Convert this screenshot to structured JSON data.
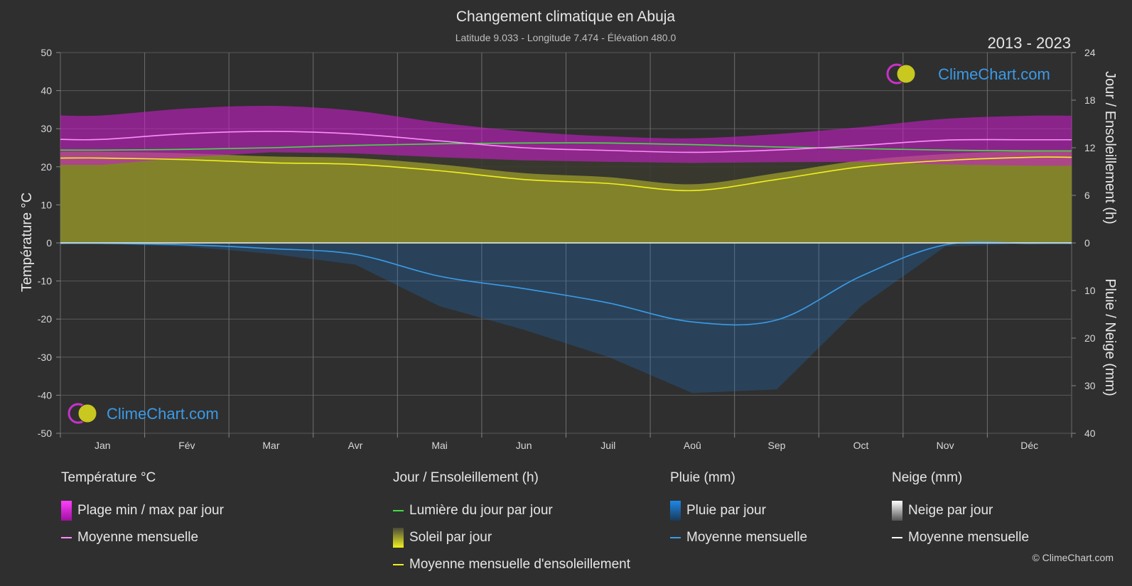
{
  "title": "Changement climatique en Abuja",
  "subtitle": "Latitude 9.033 - Longitude 7.474 - Élévation 480.0",
  "year_range": "2013 - 2023",
  "brand": "ClimeChart.com",
  "copyright": "© ClimeChart.com",
  "axis_labels": {
    "left": "Température °C",
    "right_top": "Jour / Ensoleillement (h)",
    "right_bottom": "Pluie / Neige (mm)"
  },
  "colors": {
    "background": "#2f2f2f",
    "temp_band": "#c81ec8",
    "temp_mean": "#ff8cff",
    "daylight": "#44dd44",
    "sunshine_band": "#8f8f2a",
    "sunshine_mean": "#f0f020",
    "rain": "#1e78c8",
    "rain_mean": "#3a9be8",
    "snow_mean": "#ffffff",
    "grid": "#5a5a5a"
  },
  "legend": {
    "temperature": {
      "heading": "Température °C",
      "items": [
        "Plage min / max par jour",
        "Moyenne mensuelle"
      ]
    },
    "sun": {
      "heading": "Jour / Ensoleillement (h)",
      "items": [
        "Lumière du jour par jour",
        "Soleil par jour",
        "Moyenne mensuelle d'ensoleillement"
      ]
    },
    "rain": {
      "heading": "Pluie (mm)",
      "items": [
        "Pluie par jour",
        "Moyenne mensuelle"
      ]
    },
    "snow": {
      "heading": "Neige (mm)",
      "items": [
        "Neige par jour",
        "Moyenne mensuelle"
      ]
    }
  },
  "chart_data": {
    "type": "line",
    "categories": [
      "Jan",
      "Fév",
      "Mar",
      "Avr",
      "Mai",
      "Jun",
      "Juil",
      "Aoû",
      "Sep",
      "Oct",
      "Nov",
      "Déc"
    ],
    "left_axis": {
      "label": "Température °C",
      "ylim": [
        -50,
        50
      ],
      "ticks": [
        50,
        40,
        30,
        20,
        10,
        0,
        -10,
        -20,
        -30,
        -40,
        -50
      ]
    },
    "right_axis_top": {
      "label": "Jour / Ensoleillement (h)",
      "ylim": [
        0,
        24
      ],
      "ticks": [
        24,
        18,
        12,
        6,
        0
      ]
    },
    "right_axis_bottom": {
      "label": "Pluie / Neige (mm)",
      "ylim": [
        0,
        40
      ],
      "ticks": [
        0,
        10,
        20,
        30,
        40
      ]
    },
    "series": [
      {
        "name": "Moyenne mensuelle",
        "group": "temperature",
        "values": [
          27.2,
          28.7,
          29.3,
          28.6,
          26.8,
          25.0,
          24.3,
          23.8,
          24.4,
          25.6,
          27.0,
          27.1
        ]
      },
      {
        "name": "Plage min / max par jour",
        "group": "temperature",
        "min": [
          20.5,
          22.5,
          23.8,
          23.5,
          22.5,
          21.7,
          21.3,
          21.0,
          21.2,
          21.3,
          20.6,
          20.3
        ],
        "max": [
          33.5,
          35.3,
          36.0,
          34.7,
          31.6,
          29.3,
          28.0,
          27.5,
          28.6,
          30.4,
          32.6,
          33.4
        ]
      },
      {
        "name": "Lumière du jour par jour",
        "group": "sun",
        "values": [
          11.7,
          11.8,
          12.0,
          12.3,
          12.5,
          12.6,
          12.6,
          12.4,
          12.1,
          11.9,
          11.7,
          11.6
        ]
      },
      {
        "name": "Moyenne mensuelle d'ensoleillement",
        "group": "sun",
        "values": [
          10.7,
          10.5,
          10.1,
          9.9,
          9.1,
          8.0,
          7.5,
          6.6,
          8.0,
          9.6,
          10.4,
          10.8
        ]
      },
      {
        "name": "Moyenne mensuelle",
        "group": "rain",
        "values": [
          0.1,
          0.4,
          1.2,
          2.4,
          7.0,
          9.6,
          12.6,
          16.6,
          16.2,
          7.0,
          0.4,
          0.1
        ]
      },
      {
        "name": "Moyenne mensuelle",
        "group": "snow",
        "values": [
          0,
          0,
          0,
          0,
          0,
          0,
          0,
          0,
          0,
          0,
          0,
          0
        ]
      }
    ]
  }
}
